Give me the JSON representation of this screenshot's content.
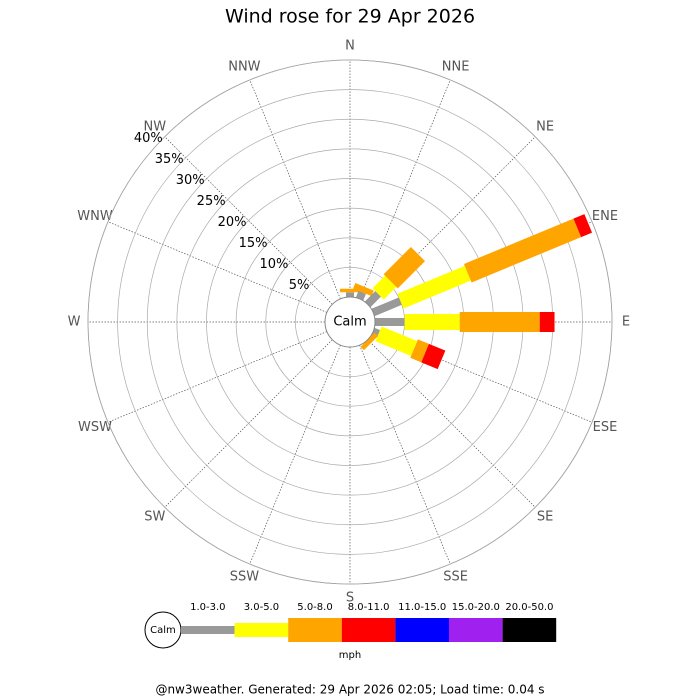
{
  "chart_data": {
    "type": "windrose",
    "title": "Wind rose for 29 Apr 2026",
    "categories": [
      "N",
      "NNE",
      "NE",
      "ENE",
      "E",
      "ESE",
      "SE",
      "SSE",
      "S",
      "SSW",
      "SW",
      "WSW",
      "W",
      "WNW",
      "NW",
      "NNW"
    ],
    "calm_label": "Calm",
    "rlim": [
      0,
      40
    ],
    "rticks": [
      {
        "value": 5,
        "label": "5%"
      },
      {
        "value": 10,
        "label": "10%"
      },
      {
        "value": 15,
        "label": "15%"
      },
      {
        "value": 20,
        "label": "20%"
      },
      {
        "value": 25,
        "label": "25%"
      },
      {
        "value": 30,
        "label": "30%"
      },
      {
        "value": 35,
        "label": "35%"
      },
      {
        "value": 40,
        "label": "40%"
      }
    ],
    "series": [
      {
        "name": "1.0-3.0",
        "color": "#999999",
        "values": [
          0.8,
          1.2,
          2.5,
          5,
          5,
          1,
          0,
          0,
          0,
          0,
          0,
          0,
          0,
          0,
          0,
          0
        ]
      },
      {
        "name": "3.0-5.0",
        "color": "#ffff00",
        "values": [
          0,
          0,
          3,
          12.3,
          9.3,
          6.5,
          0,
          0,
          0,
          0,
          0,
          0,
          0,
          0,
          0,
          0
        ]
      },
      {
        "name": "5.0-8.0",
        "color": "#ffa500",
        "values": [
          0.6,
          1,
          6.5,
          20,
          13.5,
          2,
          0.8,
          0,
          0,
          0,
          0,
          0,
          0,
          0,
          0,
          0
        ]
      },
      {
        "name": "8.0-11.0",
        "color": "#ff0000",
        "values": [
          0,
          0,
          0,
          2,
          2.5,
          3,
          0,
          0,
          0,
          0,
          0,
          0,
          0,
          0,
          0,
          0
        ]
      },
      {
        "name": "11.0-15.0",
        "color": "#0000ff",
        "values": [
          0,
          0,
          0,
          0,
          0,
          0,
          0,
          0,
          0,
          0,
          0,
          0,
          0,
          0,
          0,
          0
        ]
      },
      {
        "name": "15.0-20.0",
        "color": "#a020f0",
        "values": [
          0,
          0,
          0,
          0,
          0,
          0,
          0,
          0,
          0,
          0,
          0,
          0,
          0,
          0,
          0,
          0
        ]
      },
      {
        "name": "20.0-50.0",
        "color": "#000000",
        "values": [
          0,
          0,
          0,
          0,
          0,
          0,
          0,
          0,
          0,
          0,
          0,
          0,
          0,
          0,
          0,
          0
        ]
      }
    ],
    "legend_unit": "mph",
    "footer": "@nw3weather. Generated: 29 Apr 2026 02:05; Load time: 0.04 s"
  }
}
